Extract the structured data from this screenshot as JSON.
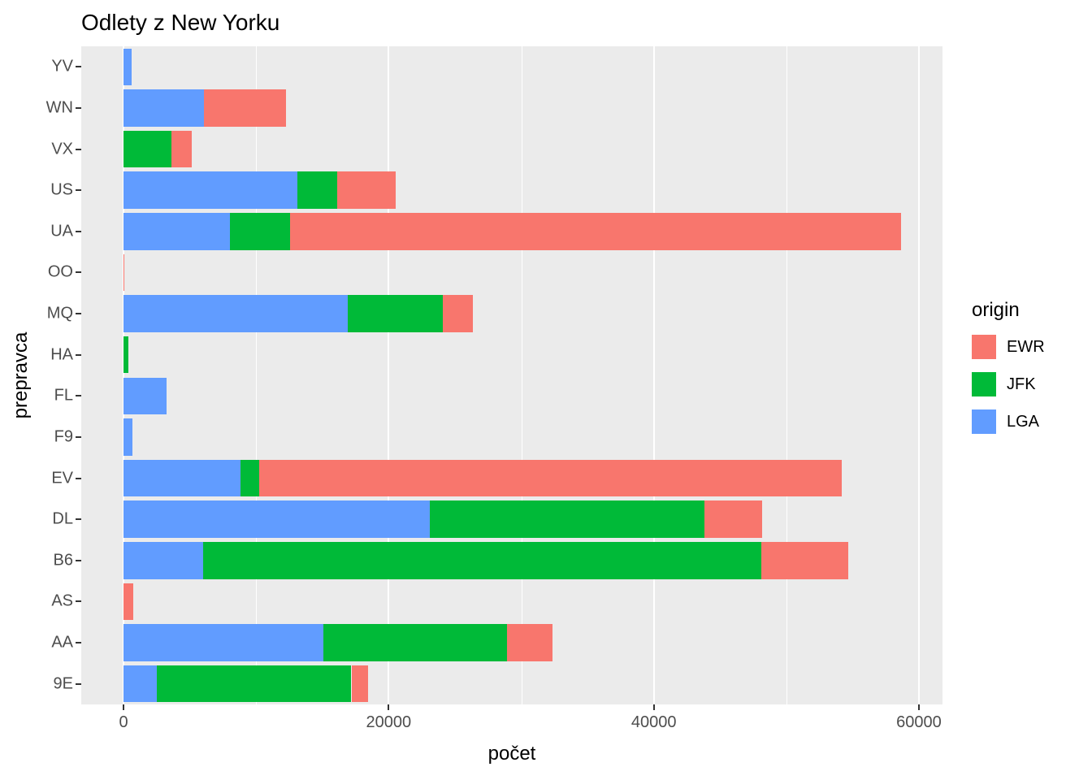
{
  "title": "Odlety z New Yorku",
  "x_axis": {
    "label": "počet",
    "tick_labels": [
      "0",
      "20000",
      "40000",
      "60000"
    ],
    "tick_values": [
      0,
      20000,
      40000,
      60000
    ]
  },
  "y_axis": {
    "label": "prepravca"
  },
  "legend": {
    "title": "origin",
    "items": [
      {
        "label": "EWR",
        "color": "#F8766D"
      },
      {
        "label": "JFK",
        "color": "#00BA38"
      },
      {
        "label": "LGA",
        "color": "#619CFF"
      }
    ]
  },
  "colors": {
    "panel_background": "#EBEBEB",
    "gridline": "#FFFFFF",
    "tick_text": "#4D4D4D",
    "ewr": "#F8766D",
    "jfk": "#00BA38",
    "lga": "#619CFF"
  },
  "chart_data": {
    "type": "bar",
    "orientation": "horizontal",
    "stacked": true,
    "title": "Odlety z New Yorku",
    "xlabel": "počet",
    "ylabel": "prepravca",
    "legend_title": "origin",
    "legend_position": "right",
    "grid": true,
    "xlim": [
      0,
      60000
    ],
    "categories": [
      "YV",
      "WN",
      "VX",
      "US",
      "UA",
      "OO",
      "MQ",
      "HA",
      "FL",
      "F9",
      "EV",
      "DL",
      "B6",
      "AS",
      "AA",
      "9E"
    ],
    "stack_order": [
      "LGA",
      "JFK",
      "EWR"
    ],
    "series": [
      {
        "name": "LGA",
        "color": "#619CFF",
        "values": [
          601,
          6087,
          0,
          13100,
          8044,
          26,
          16900,
          0,
          3260,
          685,
          8826,
          23100,
          6002,
          0,
          15100,
          2541
        ]
      },
      {
        "name": "JFK",
        "color": "#00BA38",
        "values": [
          0,
          0,
          3600,
          3000,
          4534,
          0,
          7200,
          342,
          0,
          0,
          1408,
          20700,
          42100,
          0,
          13800,
          14650
        ]
      },
      {
        "name": "EWR",
        "color": "#F8766D",
        "values": [
          0,
          6188,
          1566,
          4405,
          46087,
          6,
          2280,
          0,
          0,
          0,
          43939,
          4342,
          6557,
          714,
          3490,
          1270
        ]
      }
    ]
  }
}
